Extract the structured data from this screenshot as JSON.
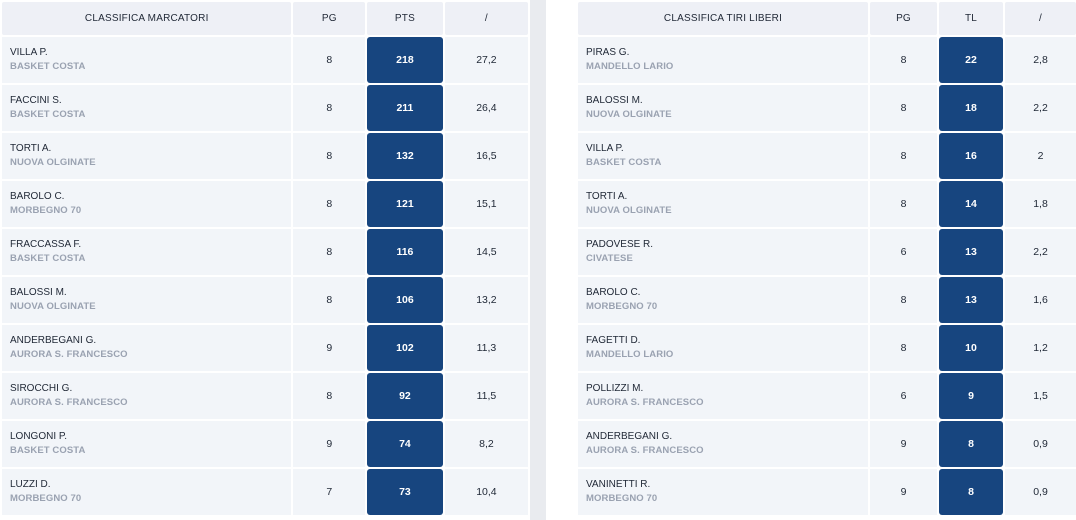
{
  "scorers": {
    "headers": {
      "name": "CLASSIFICA MARCATORI",
      "games": "PG",
      "stat": "PTS",
      "avg": "/"
    },
    "rows": [
      {
        "name": "VILLA P.",
        "team": "BASKET COSTA",
        "games": "8",
        "stat": "218",
        "avg": "27,2"
      },
      {
        "name": "FACCINI S.",
        "team": "BASKET COSTA",
        "games": "8",
        "stat": "211",
        "avg": "26,4"
      },
      {
        "name": "TORTI A.",
        "team": "NUOVA OLGINATE",
        "games": "8",
        "stat": "132",
        "avg": "16,5"
      },
      {
        "name": "BAROLO C.",
        "team": "MORBEGNO 70",
        "games": "8",
        "stat": "121",
        "avg": "15,1"
      },
      {
        "name": "FRACCASSA F.",
        "team": "BASKET COSTA",
        "games": "8",
        "stat": "116",
        "avg": "14,5"
      },
      {
        "name": "BALOSSI M.",
        "team": "NUOVA OLGINATE",
        "games": "8",
        "stat": "106",
        "avg": "13,2"
      },
      {
        "name": "ANDERBEGANI G.",
        "team": "AURORA S. FRANCESCO",
        "games": "9",
        "stat": "102",
        "avg": "11,3"
      },
      {
        "name": "SIROCCHI G.",
        "team": "AURORA S. FRANCESCO",
        "games": "8",
        "stat": "92",
        "avg": "11,5"
      },
      {
        "name": "LONGONI P.",
        "team": "BASKET COSTA",
        "games": "9",
        "stat": "74",
        "avg": "8,2"
      },
      {
        "name": "LUZZI D.",
        "team": "MORBEGNO 70",
        "games": "7",
        "stat": "73",
        "avg": "10,4"
      }
    ]
  },
  "free_throws": {
    "headers": {
      "name": "CLASSIFICA TIRI LIBERI",
      "games": "PG",
      "stat": "TL",
      "avg": "/"
    },
    "rows": [
      {
        "name": "PIRAS G.",
        "team": "MANDELLO LARIO",
        "games": "8",
        "stat": "22",
        "avg": "2,8"
      },
      {
        "name": "BALOSSI M.",
        "team": "NUOVA OLGINATE",
        "games": "8",
        "stat": "18",
        "avg": "2,2"
      },
      {
        "name": "VILLA P.",
        "team": "BASKET COSTA",
        "games": "8",
        "stat": "16",
        "avg": "2"
      },
      {
        "name": "TORTI A.",
        "team": "NUOVA OLGINATE",
        "games": "8",
        "stat": "14",
        "avg": "1,8"
      },
      {
        "name": "PADOVESE R.",
        "team": "CIVATESE",
        "games": "6",
        "stat": "13",
        "avg": "2,2"
      },
      {
        "name": "BAROLO C.",
        "team": "MORBEGNO 70",
        "games": "8",
        "stat": "13",
        "avg": "1,6"
      },
      {
        "name": "FAGETTI D.",
        "team": "MANDELLO LARIO",
        "games": "8",
        "stat": "10",
        "avg": "1,2"
      },
      {
        "name": "POLLIZZI M.",
        "team": "AURORA S. FRANCESCO",
        "games": "6",
        "stat": "9",
        "avg": "1,5"
      },
      {
        "name": "ANDERBEGANI G.",
        "team": "AURORA S. FRANCESCO",
        "games": "9",
        "stat": "8",
        "avg": "0,9"
      },
      {
        "name": "VANINETTI R.",
        "team": "MORBEGNO 70",
        "games": "9",
        "stat": "8",
        "avg": "0,9"
      }
    ]
  }
}
